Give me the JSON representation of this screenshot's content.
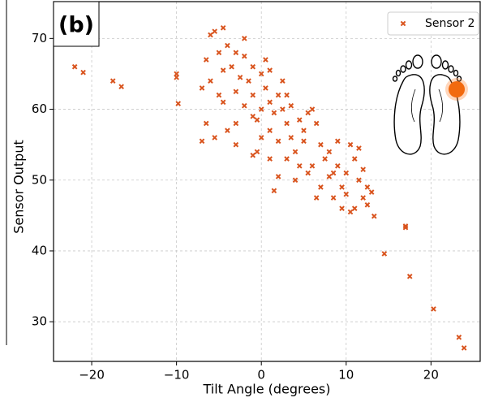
{
  "chart_data": {
    "type": "scatter",
    "panel_label": "(b)",
    "xlabel": "Tilt Angle (degrees)",
    "ylabel": "Sensor Output",
    "series": [
      {
        "name": "Sensor 2",
        "color": "#d9541e",
        "x": [
          -6,
          -5.5,
          -4.5,
          -4,
          -5,
          -6.5,
          -3,
          -2,
          -3.5,
          -4.5,
          -2.5,
          -1,
          -1.5,
          0,
          -6,
          -7,
          -5,
          -3,
          -1,
          0.5,
          1,
          0,
          -0.5,
          1.5,
          2,
          2.5,
          3,
          1,
          0,
          -1,
          -2,
          -3,
          -4,
          -5.5,
          -6.5,
          -7,
          -4.5,
          2,
          3.5,
          4,
          5,
          5.5,
          6.5,
          7,
          6,
          4.5,
          3,
          2,
          1,
          -0.5,
          1.5,
          4,
          5.5,
          7.5,
          8,
          9,
          10,
          10.5,
          10,
          11,
          11.5,
          12,
          12.5,
          11,
          9.5,
          8.5,
          8,
          9,
          7,
          6.5,
          3.5,
          2.5,
          4.5,
          0.5,
          -2,
          -1,
          -3,
          1,
          3,
          5,
          6,
          8.5,
          10.5,
          9.5,
          12,
          12.5,
          13,
          11.5,
          -22,
          -21,
          -17.5,
          -16.5,
          -10,
          -10,
          -9.8,
          14.5,
          17,
          17,
          17.5,
          20.3,
          23.3,
          23.9,
          13.3
        ],
        "y": [
          70.5,
          71,
          71.5,
          69,
          68,
          67,
          68,
          67.5,
          66,
          65.5,
          64.5,
          66,
          64,
          65,
          64,
          63,
          62,
          62.5,
          62,
          63,
          61,
          60,
          58.5,
          59.5,
          62,
          60,
          58,
          57,
          56,
          59,
          60.5,
          58,
          57,
          56,
          58,
          55.5,
          61,
          55.5,
          56,
          54,
          57,
          59.5,
          58,
          55,
          52,
          52,
          53,
          50.5,
          53,
          54,
          48.5,
          50,
          51,
          53,
          50.5,
          52,
          51,
          55,
          48,
          53,
          50,
          47.5,
          46.5,
          46,
          49,
          47.5,
          54,
          55.5,
          49,
          47.5,
          60.5,
          64,
          58.5,
          67,
          70,
          53.5,
          55,
          65.5,
          62,
          55.5,
          60,
          51,
          45.5,
          46,
          51.5,
          49,
          48.3,
          54.5,
          66,
          65.2,
          64,
          63.2,
          65,
          64.5,
          60.8,
          39.6,
          43.3,
          43.5,
          36.4,
          31.8,
          27.8,
          26.3,
          44.9
        ]
      }
    ],
    "xlim": [
      -24.5,
      25.8
    ],
    "ylim": [
      24.4,
      75.2
    ],
    "xticks": [
      {
        "value": -20,
        "label": "−20"
      },
      {
        "value": -10,
        "label": "−10"
      },
      0,
      10,
      20
    ],
    "yticks": [
      30,
      40,
      50,
      60,
      70
    ],
    "grid": true,
    "legend": "upper right"
  }
}
